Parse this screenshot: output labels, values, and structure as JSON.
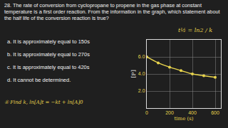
{
  "document": {
    "question": "28. The rate of conversion from cyclopropane to propene in the gas phase at constant temperature is a first order reaction. From the information in the graph, which statement about the half life of the conversion reaction is true?",
    "options": [
      "a. It is approximately equal to 150s",
      "b. It is approximately equal to 270s",
      "c. It is approximately equal to 420s",
      "d. It cannot be determined."
    ],
    "notes": {
      "half_life": "t½ = ln2 / k",
      "step": "① Find k, ln[A]t = −kt + ln[A]0"
    }
  },
  "chart_data": {
    "type": "line",
    "x": [
      0,
      100,
      200,
      300,
      400,
      500,
      600
    ],
    "values": [
      6.0,
      5.3,
      4.8,
      4.4,
      4.0,
      3.8,
      3.6
    ],
    "xlim": [
      0,
      650
    ],
    "xticks": [
      0,
      200,
      400,
      600
    ],
    "ylim": [
      0,
      8
    ],
    "yticks": [
      {
        "value": 2,
        "label": "2.0"
      },
      {
        "value": 4,
        "label": "4.0"
      },
      {
        "value": 6,
        "label": "6.0"
      }
    ],
    "x_label": "time (s)",
    "y_label": "[P]",
    "grid": true,
    "marker": "circle",
    "color": "#e8d44d"
  }
}
